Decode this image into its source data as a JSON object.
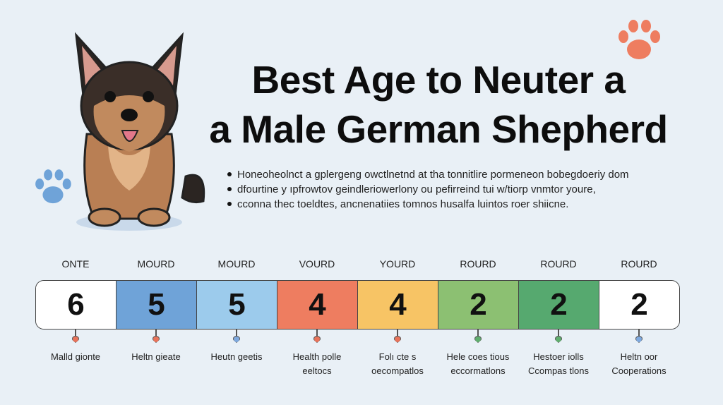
{
  "title": {
    "line1": "Best Age to Neuter a",
    "line2": "a Male German Shepherd"
  },
  "bullets": [
    "Honeoheolnct a gplergeng owctlnetnd at tha tonnitlire pormeneon bobegdoeriy dom",
    "dfourtine y ıpfrowtov geindleriowerlony ou pefirreind tui w/tiorp vnmtor youre,",
    "cconna thec toeldtes, ancnenatiies tomnos husalfa luintos roer shiicne."
  ],
  "icons": {
    "dog": "german-shepherd-puppy",
    "paw_top": "paw-print-orange",
    "paw_left": "paw-print-blue"
  },
  "scale": [
    {
      "label": "ONTE",
      "value": "6",
      "color": "#ffffff",
      "marker": "#e9735a",
      "caption": [
        "Malld gionte"
      ]
    },
    {
      "label": "MOURD",
      "value": "5",
      "color": "#6fa3d8",
      "marker": "#e9735a",
      "caption": [
        "Heltn gieate"
      ]
    },
    {
      "label": "MOURD",
      "value": "5",
      "color": "#9ccbec",
      "marker": "#7ea9df",
      "caption": [
        "Heutn geetis"
      ]
    },
    {
      "label": "VOURD",
      "value": "4",
      "color": "#ee7d60",
      "marker": "#e9735a",
      "caption": [
        "Health polle",
        "eeltocs"
      ]
    },
    {
      "label": "YOURD",
      "value": "4",
      "color": "#f7c465",
      "marker": "#e9735a",
      "caption": [
        "Folı cte s",
        "oecompatlos"
      ]
    },
    {
      "label": "ROURD",
      "value": "2",
      "color": "#8cc072",
      "marker": "#5fae6d",
      "caption": [
        "Hele coes tious",
        "eccormatlons"
      ]
    },
    {
      "label": "ROURD",
      "value": "2",
      "color": "#56a96f",
      "marker": "#5fae6d",
      "caption": [
        "Hestoer iolls",
        "Ccompas tlons"
      ]
    },
    {
      "label": "ROURD",
      "value": "2",
      "color": "#ffffff",
      "marker": "#7ea9df",
      "caption": [
        "Heltn oor",
        "Cooperations"
      ]
    }
  ]
}
